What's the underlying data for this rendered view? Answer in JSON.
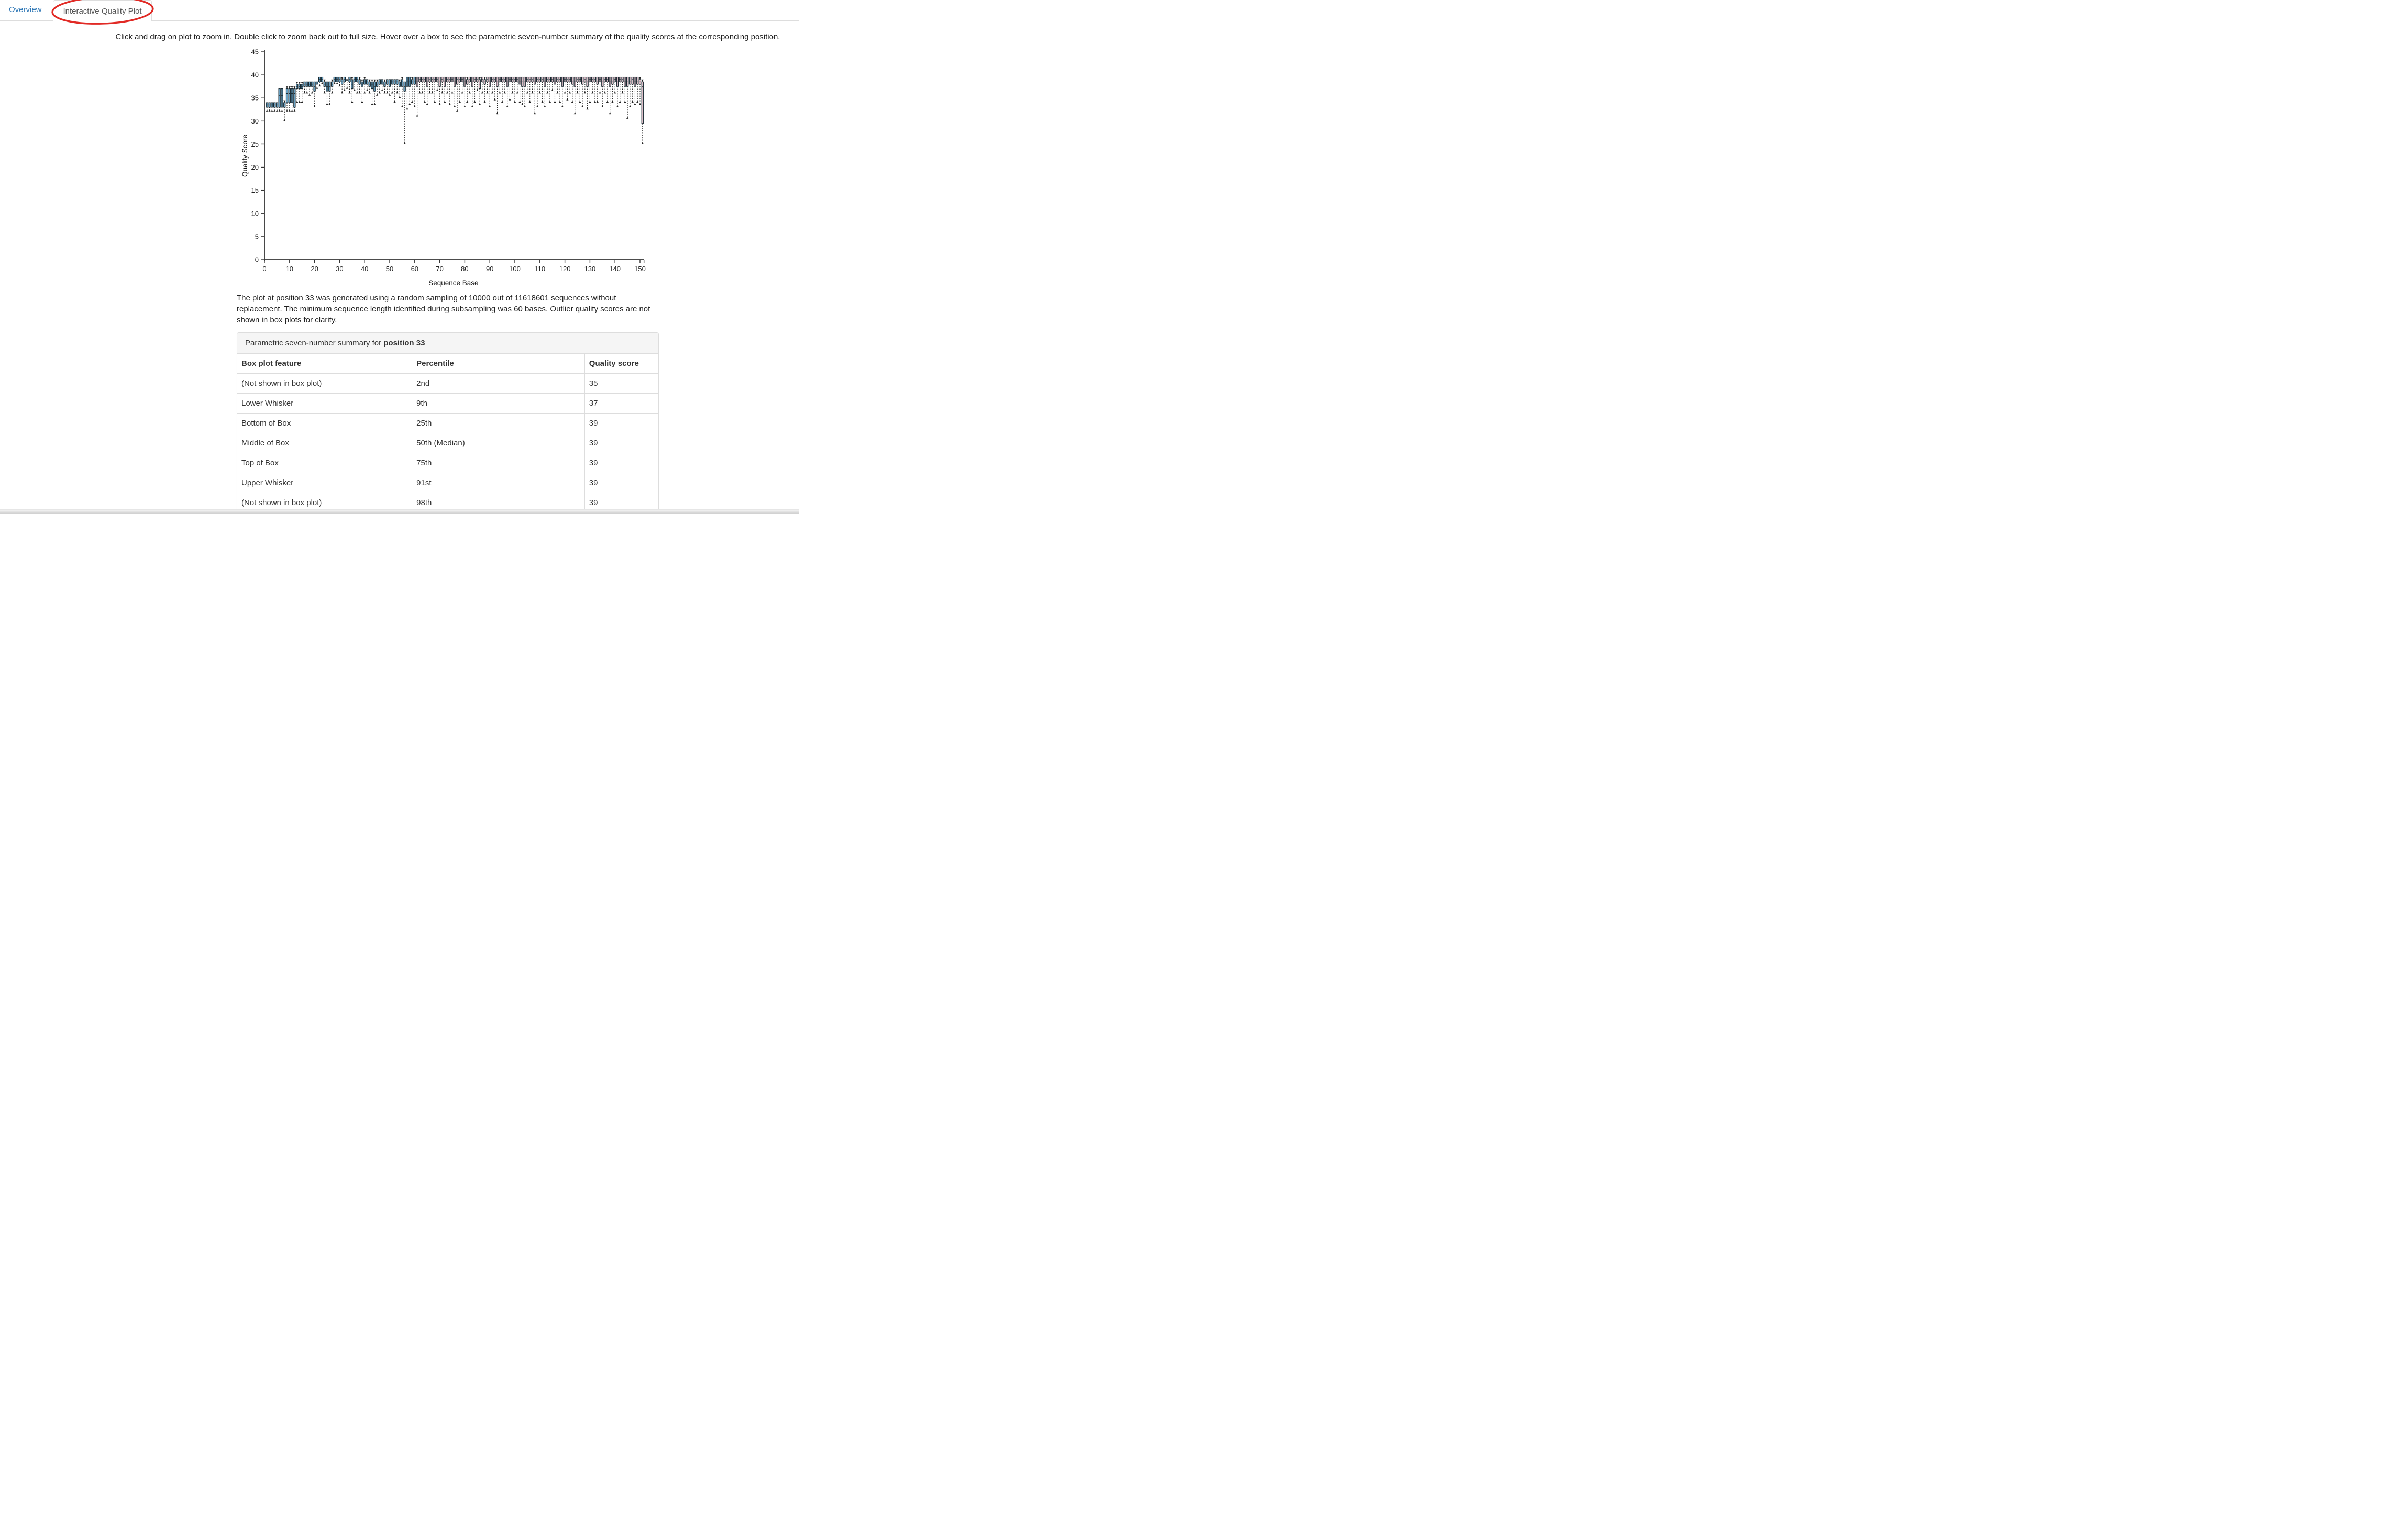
{
  "tabs": [
    {
      "label": "Overview",
      "active": false
    },
    {
      "label": "Interactive Quality Plot",
      "active": true
    }
  ],
  "annotation": {
    "shape": "red-ellipse",
    "color": "#e12a25"
  },
  "instruction": "Click and drag on plot to zoom in. Double click to zoom back out to full size. Hover over a box to see the parametric seven-number summary of the quality scores at the corresponding position.",
  "description": "The plot at position 33 was generated using a random sampling of 10000 out of 11618601 sequences without replacement. The minimum sequence length identified during subsampling was 60 bases. Outlier quality scores are not shown in box plots for clarity.",
  "summary_panel": {
    "heading_prefix": "Parametric seven-number summary for ",
    "heading_bold": "position 33",
    "columns": [
      "Box plot feature",
      "Percentile",
      "Quality score"
    ],
    "rows": [
      [
        "(Not shown in box plot)",
        "2nd",
        "35"
      ],
      [
        "Lower Whisker",
        "9th",
        "37"
      ],
      [
        "Bottom of Box",
        "25th",
        "39"
      ],
      [
        "Middle of Box",
        "50th (Median)",
        "39"
      ],
      [
        "Top of Box",
        "75th",
        "39"
      ],
      [
        "Upper Whisker",
        "91st",
        "39"
      ],
      [
        "(Not shown in box plot)",
        "98th",
        "39"
      ]
    ]
  },
  "chart_data": {
    "type": "boxplot",
    "title": "",
    "xlabel": "Sequence Base",
    "ylabel": "Quality Score",
    "xlim": [
      0,
      151
    ],
    "ylim": [
      0,
      45
    ],
    "x_ticks": [
      0,
      10,
      20,
      30,
      40,
      50,
      60,
      70,
      80,
      90,
      100,
      110,
      120,
      130,
      140,
      150
    ],
    "y_ticks": [
      0,
      5,
      10,
      15,
      20,
      25,
      30,
      35,
      40,
      45
    ],
    "grid": false,
    "legend": "none",
    "colors": {
      "box_fill_positions_1_to_60": "#68a0c2",
      "box_fill_positions_61_to_151": "#dcbcc6",
      "box_stroke": "#16262e",
      "whisker": "#222222",
      "axis": "#333333"
    },
    "color_rule": "positions 1-60 blue (full depth), positions 61-151 pink (beyond min subsampled length 60)",
    "box_columns": [
      "position",
      "whisker_low",
      "q1",
      "median",
      "q3",
      "whisker_high"
    ],
    "boxes": [
      [
        1,
        32,
        33,
        33.5,
        34,
        34
      ],
      [
        2,
        32,
        33,
        33.5,
        34,
        34
      ],
      [
        3,
        32,
        33,
        33.5,
        34,
        34
      ],
      [
        4,
        32,
        33,
        33.5,
        34,
        34
      ],
      [
        5,
        32,
        33,
        33.5,
        34,
        34
      ],
      [
        6,
        32,
        33,
        35.5,
        37,
        37
      ],
      [
        7,
        32,
        33,
        35.5,
        37,
        37
      ],
      [
        8,
        30,
        33,
        33.5,
        34,
        34.5
      ],
      [
        9,
        32,
        34,
        36,
        37,
        37.5
      ],
      [
        10,
        32,
        34,
        36,
        37,
        37.5
      ],
      [
        11,
        32,
        34,
        36,
        37,
        37.5
      ],
      [
        12,
        32,
        33,
        36,
        37,
        37.5
      ],
      [
        13,
        34,
        37,
        37.5,
        38,
        38.5
      ],
      [
        14,
        34,
        37,
        37.5,
        38,
        38.5
      ],
      [
        15,
        34,
        37,
        37.5,
        38,
        38.5
      ],
      [
        16,
        36,
        37.5,
        38,
        38.5,
        38.5
      ],
      [
        17,
        36,
        37.5,
        38,
        38.5,
        38.5
      ],
      [
        18,
        35.5,
        37.5,
        38,
        38.5,
        38.5
      ],
      [
        19,
        36,
        37.5,
        38,
        38.5,
        38.5
      ],
      [
        20,
        33,
        36.5,
        37.5,
        38.5,
        38.5
      ],
      [
        21,
        37,
        38,
        38.5,
        38.5,
        38.5
      ],
      [
        22,
        37.5,
        38.5,
        39,
        39.5,
        39.5
      ],
      [
        23,
        38,
        38.5,
        39,
        39.5,
        39.5
      ],
      [
        24,
        36,
        37.5,
        38,
        38.5,
        39
      ],
      [
        25,
        33.5,
        36.5,
        37.5,
        38.5,
        38.5
      ],
      [
        26,
        33.5,
        36.5,
        37.5,
        38.5,
        38.5
      ],
      [
        27,
        36,
        37.5,
        38,
        38.5,
        39
      ],
      [
        28,
        38,
        38.5,
        39,
        39.5,
        39.5
      ],
      [
        29,
        38,
        38.5,
        39,
        39.5,
        39.5
      ],
      [
        30,
        37.5,
        38.5,
        39,
        39.5,
        39.5
      ],
      [
        31,
        36,
        38,
        38.5,
        39,
        39.5
      ],
      [
        32,
        36.5,
        38.5,
        39,
        39.5,
        39.5
      ],
      [
        33,
        37,
        39,
        39,
        39,
        39
      ],
      [
        34,
        36,
        38.5,
        39,
        39.5,
        39.5
      ],
      [
        35,
        34,
        37,
        38,
        39,
        39.5
      ],
      [
        36,
        36.5,
        38.5,
        39,
        39.5,
        39.5
      ],
      [
        37,
        36,
        38.5,
        39,
        39.5,
        39.5
      ],
      [
        38,
        36,
        38,
        38.5,
        39,
        39.5
      ],
      [
        39,
        34,
        37.5,
        38,
        38.5,
        39
      ],
      [
        40,
        36,
        38,
        38.5,
        39,
        39.5
      ],
      [
        41,
        36.5,
        38,
        38.5,
        39,
        39
      ],
      [
        42,
        36,
        37.5,
        38,
        38.5,
        39
      ],
      [
        43,
        33.5,
        37,
        38,
        38.5,
        39
      ],
      [
        44,
        33.5,
        36.5,
        37.5,
        38.5,
        39
      ],
      [
        45,
        35.5,
        37.5,
        38,
        38.5,
        39
      ],
      [
        46,
        36,
        38,
        38.5,
        39,
        39
      ],
      [
        47,
        36.5,
        38,
        38.5,
        39,
        39
      ],
      [
        48,
        36,
        37.5,
        38,
        38.5,
        39
      ],
      [
        49,
        36,
        38,
        38.5,
        39,
        39
      ],
      [
        50,
        35.5,
        37.5,
        38,
        39,
        39
      ],
      [
        51,
        36,
        38,
        38.5,
        39,
        39
      ],
      [
        52,
        34,
        38,
        38.5,
        39,
        39
      ],
      [
        53,
        36,
        38,
        38.5,
        39,
        39
      ],
      [
        54,
        35,
        37.5,
        38,
        38.5,
        39
      ],
      [
        55,
        33,
        37.5,
        38.5,
        39,
        39.5
      ],
      [
        56,
        25,
        36.5,
        37.5,
        38.5,
        38.5
      ],
      [
        57,
        32.5,
        37.5,
        38.5,
        39.5,
        39.5
      ],
      [
        58,
        33.5,
        37.5,
        38.5,
        39.5,
        39.5
      ],
      [
        59,
        34,
        38,
        38.5,
        39,
        39.5
      ],
      [
        60,
        33,
        38,
        38.5,
        39.5,
        39.5
      ],
      [
        61,
        31,
        37.5,
        38.5,
        39.5,
        39.5
      ],
      [
        62,
        36,
        38.5,
        39,
        39.5,
        39.5
      ],
      [
        63,
        36,
        38.5,
        39,
        39.5,
        39.5
      ],
      [
        64,
        34,
        38.5,
        39,
        39.5,
        39.5
      ],
      [
        65,
        33.5,
        37.5,
        38.5,
        39.5,
        39.5
      ],
      [
        66,
        36,
        38.5,
        39,
        39.5,
        39.5
      ],
      [
        67,
        36,
        38.5,
        39,
        39.5,
        39.5
      ],
      [
        68,
        34,
        38.5,
        39,
        39.5,
        39.5
      ],
      [
        69,
        36.5,
        38.5,
        39,
        39.5,
        39.5
      ],
      [
        70,
        33.5,
        37.5,
        38.5,
        39.5,
        39.5
      ],
      [
        71,
        36,
        38.5,
        39,
        39.5,
        39.5
      ],
      [
        72,
        34,
        37.5,
        38.5,
        39.5,
        39.5
      ],
      [
        73,
        36,
        38.5,
        39,
        39.5,
        39.5
      ],
      [
        74,
        33.5,
        38.5,
        39,
        39.5,
        39.5
      ],
      [
        75,
        36,
        38.5,
        39,
        39.5,
        39.5
      ],
      [
        76,
        33,
        37.5,
        38.5,
        39.5,
        39.5
      ],
      [
        77,
        32,
        38,
        39,
        39.5,
        39.5
      ],
      [
        78,
        34,
        38.5,
        39,
        39.5,
        39.5
      ],
      [
        79,
        36,
        38.5,
        39,
        39.5,
        39.5
      ],
      [
        80,
        33,
        37.5,
        38.5,
        39.5,
        39.5
      ],
      [
        81,
        34,
        38,
        38.5,
        39,
        39.5
      ],
      [
        82,
        36,
        38.5,
        39,
        39.5,
        39.5
      ],
      [
        83,
        33,
        37.5,
        38.5,
        39.5,
        39.5
      ],
      [
        84,
        34,
        38.5,
        39,
        39.5,
        39.5
      ],
      [
        85,
        36.5,
        38.5,
        39,
        39.5,
        39.5
      ],
      [
        86,
        33.5,
        37,
        38,
        39,
        39.5
      ],
      [
        87,
        36,
        38.5,
        39,
        39.5,
        39.5
      ],
      [
        88,
        34,
        38,
        38.5,
        39,
        39.5
      ],
      [
        89,
        36,
        38.5,
        39,
        39.5,
        39.5
      ],
      [
        90,
        33,
        37.5,
        38.5,
        39.5,
        39.5
      ],
      [
        91,
        36,
        38.5,
        39,
        39.5,
        39.5
      ],
      [
        92,
        34.5,
        38.5,
        39,
        39.5,
        39.5
      ],
      [
        93,
        31.5,
        37.5,
        38.5,
        39.5,
        39.5
      ],
      [
        94,
        36,
        38.5,
        39,
        39.5,
        39.5
      ],
      [
        95,
        34,
        38.5,
        39,
        39.5,
        39.5
      ],
      [
        96,
        36,
        38.5,
        39,
        39.5,
        39.5
      ],
      [
        97,
        33,
        37.5,
        38.5,
        39.5,
        39.5
      ],
      [
        98,
        34.5,
        38.5,
        39,
        39.5,
        39.5
      ],
      [
        99,
        36,
        38.5,
        39,
        39.5,
        39.5
      ],
      [
        100,
        34,
        38.5,
        39,
        39.5,
        39.5
      ],
      [
        101,
        36,
        38.5,
        39,
        39.5,
        39.5
      ],
      [
        102,
        34,
        38,
        38.5,
        39.5,
        39.5
      ],
      [
        103,
        33.5,
        37.5,
        38.5,
        39.5,
        39.5
      ],
      [
        104,
        33,
        37.5,
        38.5,
        39.5,
        39.5
      ],
      [
        105,
        36,
        38.5,
        39,
        39.5,
        39.5
      ],
      [
        106,
        34,
        38.5,
        39,
        39.5,
        39.5
      ],
      [
        107,
        36,
        38.5,
        39,
        39.5,
        39.5
      ],
      [
        108,
        31.5,
        38,
        38.5,
        39.5,
        39.5
      ],
      [
        109,
        33,
        38.5,
        39,
        39.5,
        39.5
      ],
      [
        110,
        36,
        38.5,
        39,
        39.5,
        39.5
      ],
      [
        111,
        34,
        38.5,
        39,
        39.5,
        39.5
      ],
      [
        112,
        33,
        37.5,
        38.5,
        39.5,
        39.5
      ],
      [
        113,
        36,
        38.5,
        39,
        39.5,
        39.5
      ],
      [
        114,
        34,
        38.5,
        39,
        39.5,
        39.5
      ],
      [
        115,
        36.5,
        38.5,
        39,
        39.5,
        39.5
      ],
      [
        116,
        34,
        38,
        38.5,
        39.5,
        39.5
      ],
      [
        117,
        36,
        38.5,
        39,
        39.5,
        39.5
      ],
      [
        118,
        34,
        38.5,
        39,
        39.5,
        39.5
      ],
      [
        119,
        33,
        37.5,
        38.5,
        39.5,
        39.5
      ],
      [
        120,
        36,
        38.5,
        39,
        39.5,
        39.5
      ],
      [
        121,
        34.5,
        38.5,
        39,
        39.5,
        39.5
      ],
      [
        122,
        36,
        38.5,
        39,
        39.5,
        39.5
      ],
      [
        123,
        34,
        38,
        38.5,
        39.5,
        39.5
      ],
      [
        124,
        31.5,
        37.5,
        38.5,
        39.5,
        39.5
      ],
      [
        125,
        36,
        38.5,
        39,
        39.5,
        39.5
      ],
      [
        126,
        34,
        38.5,
        39,
        39.5,
        39.5
      ],
      [
        127,
        33,
        38,
        38.5,
        39.5,
        39.5
      ],
      [
        128,
        36,
        38.5,
        39,
        39.5,
        39.5
      ],
      [
        129,
        32.5,
        37.5,
        38.5,
        39.5,
        39.5
      ],
      [
        130,
        34,
        38.5,
        39,
        39.5,
        39.5
      ],
      [
        131,
        36,
        38.5,
        39,
        39.5,
        39.5
      ],
      [
        132,
        34,
        38.5,
        39,
        39.5,
        39.5
      ],
      [
        133,
        34,
        38,
        38.5,
        39.5,
        39.5
      ],
      [
        134,
        36,
        38.5,
        39,
        39.5,
        39.5
      ],
      [
        135,
        33,
        37.5,
        38.5,
        39.5,
        39.5
      ],
      [
        136,
        36,
        38.5,
        39,
        39.5,
        39.5
      ],
      [
        137,
        34,
        38.5,
        39,
        39.5,
        39.5
      ],
      [
        138,
        31.5,
        37.5,
        38.5,
        39.5,
        39.5
      ],
      [
        139,
        34,
        38,
        38.5,
        39.5,
        39.5
      ],
      [
        140,
        36,
        38.5,
        39,
        39.5,
        39.5
      ],
      [
        141,
        33,
        37.5,
        38.5,
        39.5,
        39.5
      ],
      [
        142,
        34,
        38.5,
        39,
        39.5,
        39.5
      ],
      [
        143,
        36,
        38.5,
        39,
        39.5,
        39.5
      ],
      [
        144,
        34,
        37.5,
        38.5,
        39.5,
        39.5
      ],
      [
        145,
        30.5,
        37.5,
        38.5,
        39.5,
        39.5
      ],
      [
        146,
        33,
        38,
        38.5,
        39.5,
        39.5
      ],
      [
        147,
        34,
        38,
        39,
        39.5,
        39.5
      ],
      [
        148,
        33.5,
        37.5,
        38.5,
        39.5,
        39.5
      ],
      [
        149,
        34,
        38,
        38.5,
        39.5,
        39.5
      ],
      [
        150,
        33.5,
        38,
        38.5,
        39,
        39.5
      ],
      [
        151,
        25,
        29.5,
        37.5,
        38.5,
        39
      ]
    ]
  }
}
